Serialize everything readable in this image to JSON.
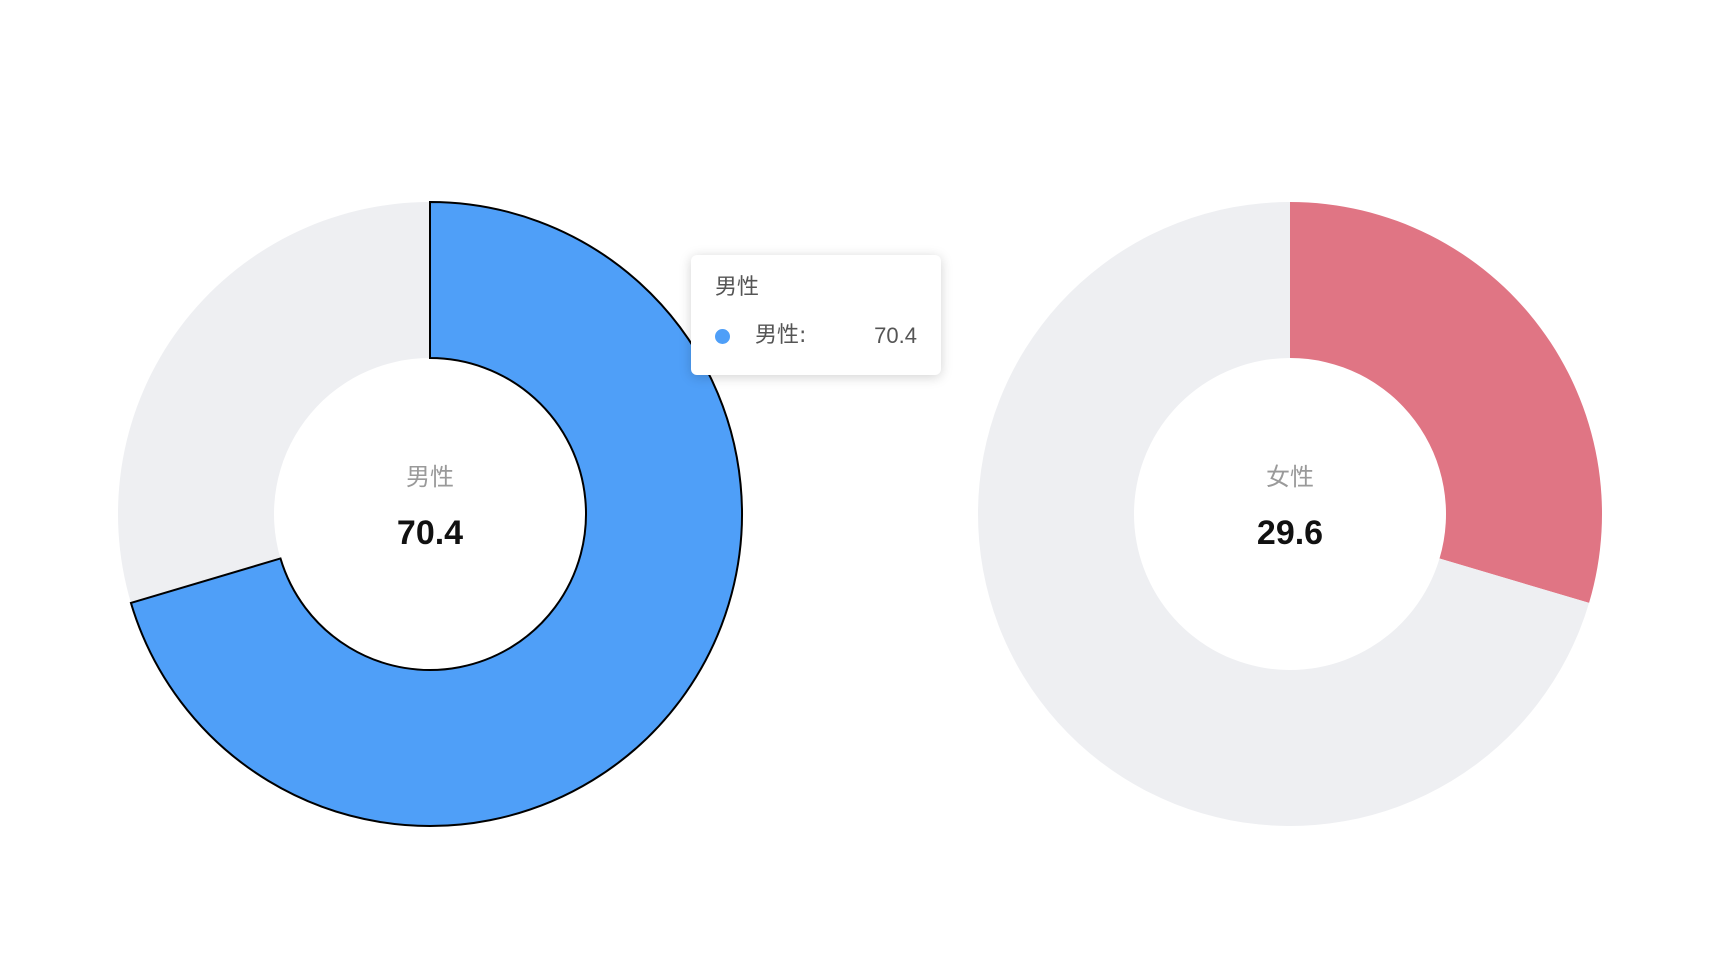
{
  "chart_data": [
    {
      "type": "pie",
      "center_label": "男性",
      "center_value": "70.4",
      "slices": [
        {
          "name": "男性",
          "value": 70.4,
          "color": "#4f9ff8"
        },
        {
          "name": "",
          "value": 29.6,
          "color": "#eeeff2"
        }
      ]
    },
    {
      "type": "pie",
      "center_label": "女性",
      "center_value": "29.6",
      "slices": [
        {
          "name": "女性",
          "value": 29.6,
          "color": "#e07584"
        },
        {
          "name": "",
          "value": 70.4,
          "color": "#eeeff2"
        }
      ]
    }
  ],
  "tooltip": {
    "title": "男性",
    "series_name": "男性:",
    "value": "70.4",
    "dot_color": "#4f9ff8"
  }
}
